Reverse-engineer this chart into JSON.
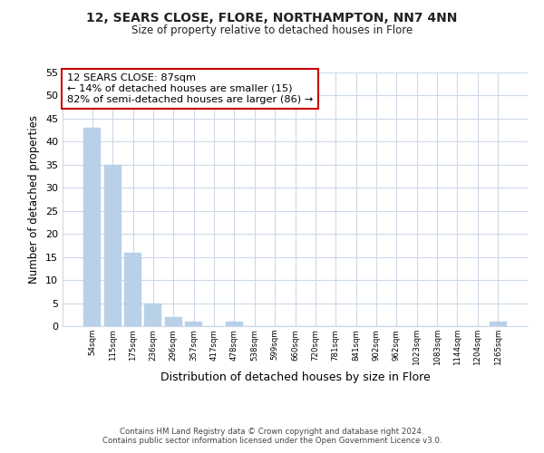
{
  "title": "12, SEARS CLOSE, FLORE, NORTHAMPTON, NN7 4NN",
  "subtitle": "Size of property relative to detached houses in Flore",
  "xlabel": "Distribution of detached houses by size in Flore",
  "ylabel": "Number of detached properties",
  "bar_values": [
    43,
    35,
    16,
    5,
    2,
    1,
    0,
    1,
    0,
    0,
    0,
    0,
    0,
    0,
    0,
    0,
    0,
    0,
    0,
    0,
    1
  ],
  "bin_labels": [
    "54sqm",
    "115sqm",
    "175sqm",
    "236sqm",
    "296sqm",
    "357sqm",
    "417sqm",
    "478sqm",
    "538sqm",
    "599sqm",
    "660sqm",
    "720sqm",
    "781sqm",
    "841sqm",
    "902sqm",
    "962sqm",
    "1023sqm",
    "1083sqm",
    "1144sqm",
    "1204sqm",
    "1265sqm"
  ],
  "bar_color": "#b8d0e8",
  "bar_edge_color": "#b8d0e8",
  "ylim": [
    0,
    55
  ],
  "yticks": [
    0,
    5,
    10,
    15,
    20,
    25,
    30,
    35,
    40,
    45,
    50,
    55
  ],
  "annotation_box_text": "12 SEARS CLOSE: 87sqm\n← 14% of detached houses are smaller (15)\n82% of semi-detached houses are larger (86) →",
  "footer_line1": "Contains HM Land Registry data © Crown copyright and database right 2024.",
  "footer_line2": "Contains public sector information licensed under the Open Government Licence v3.0.",
  "background_color": "#ffffff",
  "grid_color": "#ccd9e8"
}
